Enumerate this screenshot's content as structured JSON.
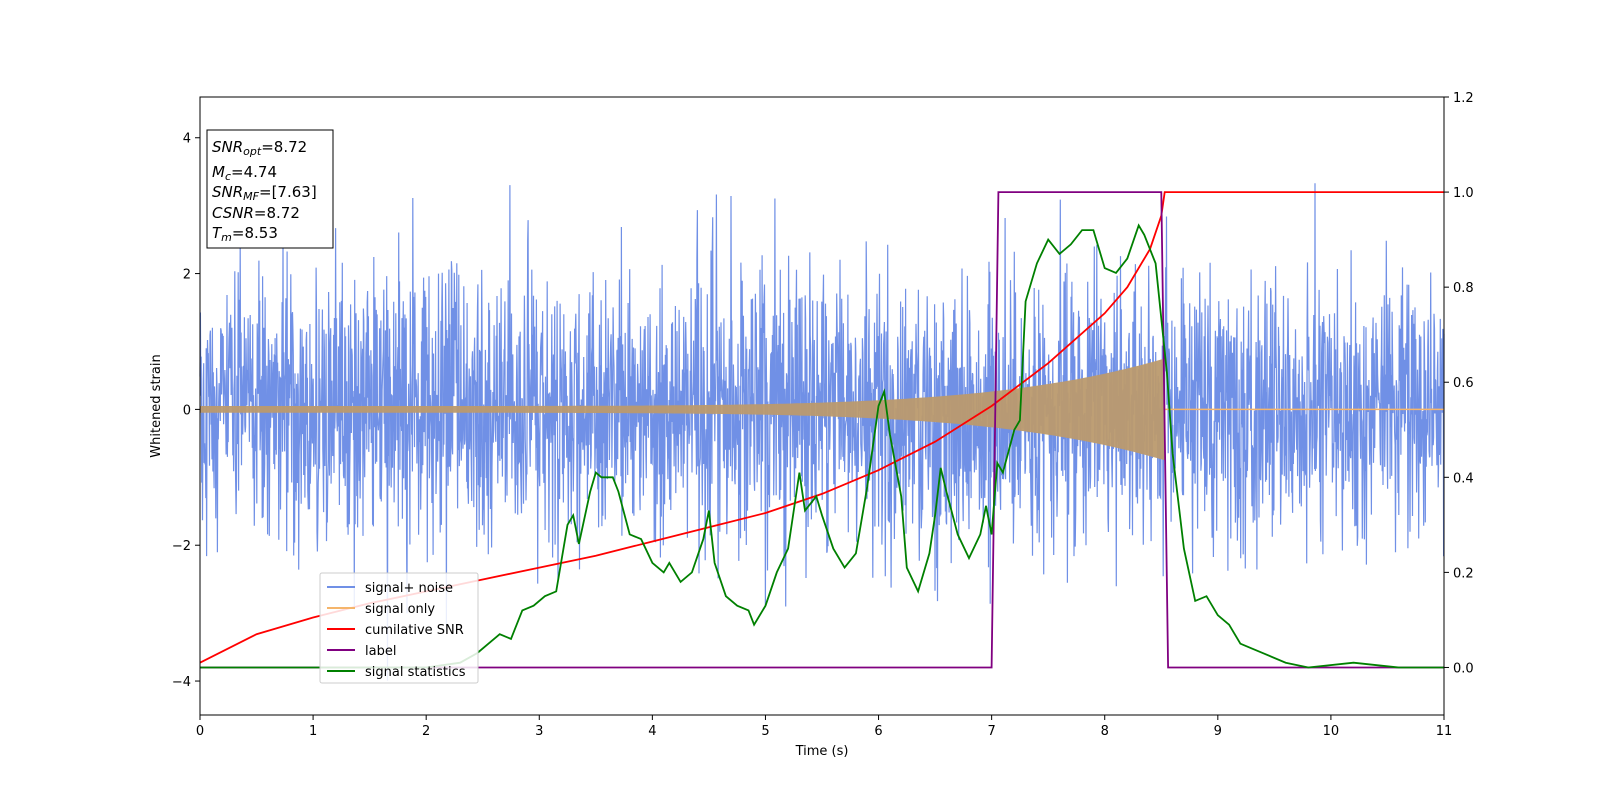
{
  "chart_data": {
    "type": "line",
    "xlabel": "Time (s)",
    "ylabel": "Whitened strain",
    "xlim": [
      0,
      11
    ],
    "ylim": [
      -4.5,
      4.6
    ],
    "y2lim": [
      -0.1,
      1.2
    ],
    "x_ticks": [
      "0",
      "1",
      "2",
      "3",
      "4",
      "5",
      "6",
      "7",
      "8",
      "9",
      "10",
      "11"
    ],
    "y_ticks": [
      "4",
      "2",
      "0",
      "−2",
      "−4"
    ],
    "y2_ticks": [
      "1.2",
      "1.0",
      "0.8",
      "0.6",
      "0.4",
      "0.2",
      "0.0"
    ],
    "annotation": {
      "snr_opt": {
        "sym": "SNR",
        "sub": "opt",
        "val": "=8.72"
      },
      "mc": {
        "sym": "M",
        "sub": "c",
        "val": "=4.74"
      },
      "snr_mf": {
        "sym": "SNR",
        "sub": "MF",
        "val": "=[7.63]"
      },
      "csnr": {
        "sym": "CSNR",
        "val": "=8.72"
      },
      "tm": {
        "sym": "T",
        "sub": "m",
        "val": "=8.53"
      }
    },
    "legend_position": "lower-left",
    "series": [
      {
        "name": "signal+ noise",
        "color": "#7090e6",
        "description_stats": {
          "rms": 1.0,
          "max_peak": 4.15,
          "min_peak": -4.05,
          "extent_x": [
            0,
            11
          ]
        }
      },
      {
        "name": "signal only",
        "color": "#f5b56b",
        "chirp": {
          "start_amplitude": 0.05,
          "end_amplitude": 0.75,
          "end_time": 8.53
        }
      },
      {
        "name": "cumilative SNR",
        "axis": "right",
        "color": "#ff0000",
        "points": [
          [
            0,
            0.01
          ],
          [
            0.5,
            0.07
          ],
          [
            1,
            0.105
          ],
          [
            1.5,
            0.135
          ],
          [
            2,
            0.16
          ],
          [
            2.5,
            0.185
          ],
          [
            3,
            0.21
          ],
          [
            3.5,
            0.235
          ],
          [
            4,
            0.265
          ],
          [
            4.5,
            0.295
          ],
          [
            5,
            0.325
          ],
          [
            5.5,
            0.365
          ],
          [
            6,
            0.415
          ],
          [
            6.5,
            0.475
          ],
          [
            7,
            0.55
          ],
          [
            7.5,
            0.64
          ],
          [
            8,
            0.745
          ],
          [
            8.2,
            0.8
          ],
          [
            8.4,
            0.88
          ],
          [
            8.5,
            0.95
          ],
          [
            8.53,
            1.0
          ],
          [
            11,
            1.0
          ]
        ]
      },
      {
        "name": "label",
        "axis": "right",
        "color": "#800080",
        "points": [
          [
            0,
            0
          ],
          [
            7.0,
            0
          ],
          [
            7.06,
            1.0
          ],
          [
            8.5,
            1.0
          ],
          [
            8.56,
            0
          ],
          [
            11,
            0
          ]
        ]
      },
      {
        "name": "signal statistics",
        "axis": "right",
        "color": "#008000",
        "points": [
          [
            0,
            0
          ],
          [
            1,
            0
          ],
          [
            2,
            0
          ],
          [
            2.3,
            0.01
          ],
          [
            2.45,
            0.03
          ],
          [
            2.55,
            0.05
          ],
          [
            2.65,
            0.07
          ],
          [
            2.75,
            0.06
          ],
          [
            2.85,
            0.12
          ],
          [
            2.95,
            0.13
          ],
          [
            3.05,
            0.15
          ],
          [
            3.15,
            0.16
          ],
          [
            3.25,
            0.3
          ],
          [
            3.3,
            0.32
          ],
          [
            3.35,
            0.26
          ],
          [
            3.45,
            0.37
          ],
          [
            3.5,
            0.41
          ],
          [
            3.55,
            0.4
          ],
          [
            3.65,
            0.4
          ],
          [
            3.7,
            0.37
          ],
          [
            3.8,
            0.28
          ],
          [
            3.9,
            0.27
          ],
          [
            4.0,
            0.22
          ],
          [
            4.1,
            0.2
          ],
          [
            4.15,
            0.22
          ],
          [
            4.25,
            0.18
          ],
          [
            4.35,
            0.2
          ],
          [
            4.45,
            0.27
          ],
          [
            4.5,
            0.33
          ],
          [
            4.55,
            0.22
          ],
          [
            4.65,
            0.15
          ],
          [
            4.75,
            0.13
          ],
          [
            4.85,
            0.12
          ],
          [
            4.9,
            0.09
          ],
          [
            5.0,
            0.13
          ],
          [
            5.1,
            0.2
          ],
          [
            5.2,
            0.25
          ],
          [
            5.3,
            0.41
          ],
          [
            5.35,
            0.33
          ],
          [
            5.45,
            0.36
          ],
          [
            5.5,
            0.32
          ],
          [
            5.6,
            0.25
          ],
          [
            5.7,
            0.21
          ],
          [
            5.8,
            0.24
          ],
          [
            5.9,
            0.38
          ],
          [
            6.0,
            0.55
          ],
          [
            6.05,
            0.58
          ],
          [
            6.1,
            0.49
          ],
          [
            6.2,
            0.36
          ],
          [
            6.25,
            0.21
          ],
          [
            6.35,
            0.16
          ],
          [
            6.45,
            0.24
          ],
          [
            6.5,
            0.32
          ],
          [
            6.55,
            0.42
          ],
          [
            6.6,
            0.37
          ],
          [
            6.7,
            0.28
          ],
          [
            6.8,
            0.23
          ],
          [
            6.9,
            0.28
          ],
          [
            6.95,
            0.34
          ],
          [
            7.0,
            0.28
          ],
          [
            7.05,
            0.43
          ],
          [
            7.1,
            0.41
          ],
          [
            7.2,
            0.5
          ],
          [
            7.25,
            0.52
          ],
          [
            7.3,
            0.77
          ],
          [
            7.4,
            0.85
          ],
          [
            7.5,
            0.9
          ],
          [
            7.6,
            0.87
          ],
          [
            7.7,
            0.89
          ],
          [
            7.8,
            0.92
          ],
          [
            7.9,
            0.92
          ],
          [
            8.0,
            0.84
          ],
          [
            8.1,
            0.83
          ],
          [
            8.2,
            0.86
          ],
          [
            8.3,
            0.93
          ],
          [
            8.35,
            0.91
          ],
          [
            8.45,
            0.85
          ],
          [
            8.55,
            0.62
          ],
          [
            8.6,
            0.45
          ],
          [
            8.7,
            0.25
          ],
          [
            8.8,
            0.14
          ],
          [
            8.9,
            0.15
          ],
          [
            9.0,
            0.11
          ],
          [
            9.1,
            0.09
          ],
          [
            9.2,
            0.05
          ],
          [
            9.3,
            0.04
          ],
          [
            9.4,
            0.03
          ],
          [
            9.6,
            0.01
          ],
          [
            9.8,
            0.0
          ],
          [
            10.2,
            0.01
          ],
          [
            10.6,
            0.0
          ],
          [
            11,
            0
          ]
        ]
      }
    ]
  }
}
